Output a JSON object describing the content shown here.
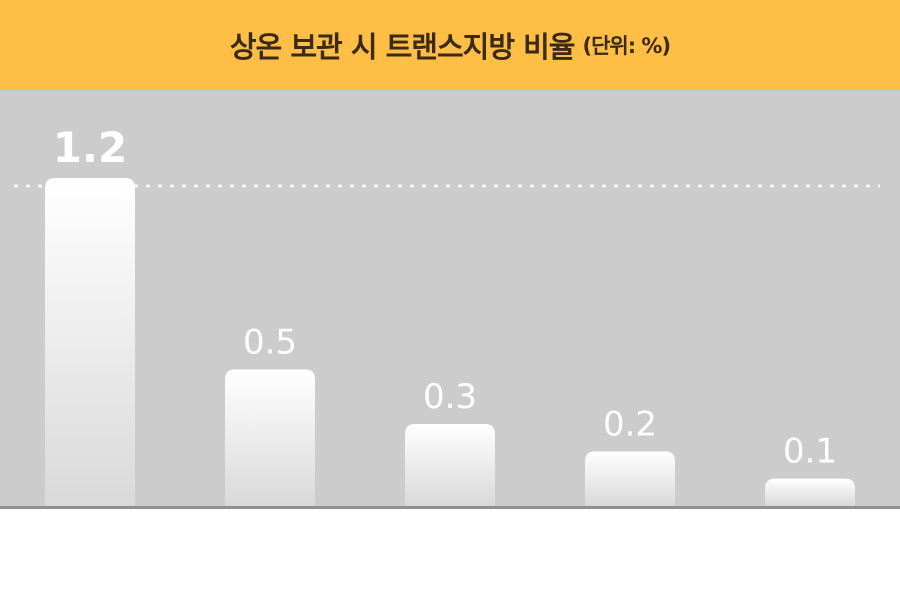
{
  "header": {
    "title": "상온 보관 시 트랜스지방 비율",
    "unit": "(단위: %)"
  },
  "colors": {
    "header_bg": "#ffbf47",
    "plot_bg": "#cccccc",
    "bar_top": "#ffffff",
    "bar_bottom": "#d9d9d9",
    "value_label": "#ffffff"
  },
  "chart_data": {
    "type": "bar",
    "title": "상온 보관 시 트랜스지방 비율",
    "subtitle": "(단위: %)",
    "categories": [
      "",
      "",
      "",
      "",
      ""
    ],
    "values": [
      1.2,
      0.5,
      0.3,
      0.2,
      0.1
    ],
    "value_labels": [
      "1.2",
      "0.5",
      "0.3",
      "0.2",
      "0.1"
    ],
    "reference_line": 1.2,
    "ylim": [
      0,
      1.2
    ],
    "grid": false,
    "legend": "none"
  }
}
